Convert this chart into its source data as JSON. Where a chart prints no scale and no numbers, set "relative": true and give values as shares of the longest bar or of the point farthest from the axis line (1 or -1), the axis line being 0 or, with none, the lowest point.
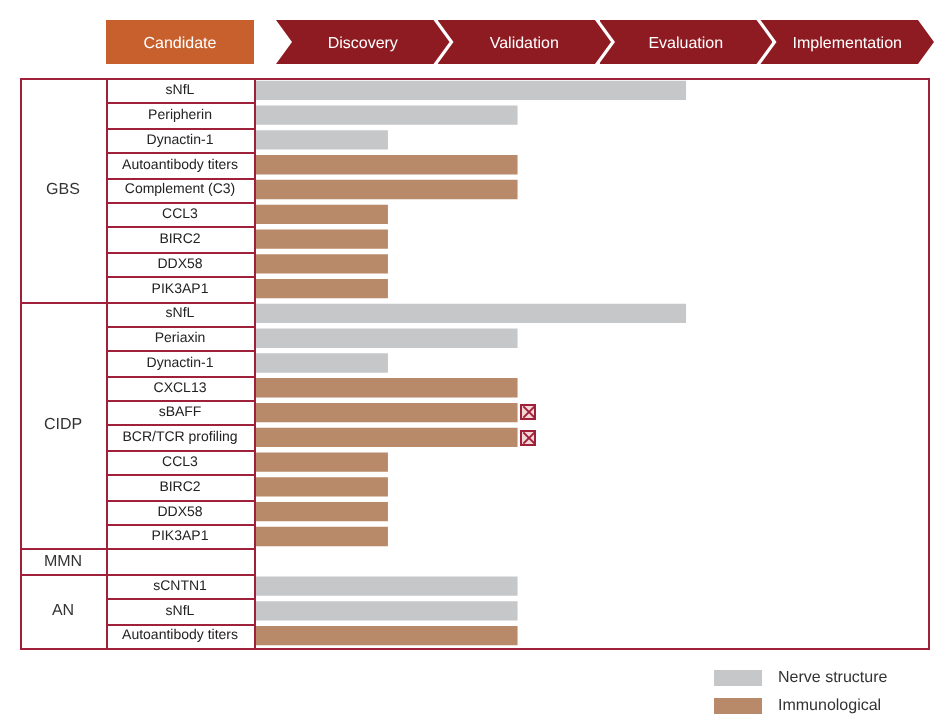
{
  "chart_data": {
    "type": "bar",
    "orientation": "horizontal",
    "relative": true,
    "categories": [
      "sNfL",
      "Peripherin",
      "Dynactin-1",
      "Autoantibody titers",
      "Complement (C3)",
      "CCL3",
      "BIRC2",
      "DDX58",
      "PIK3AP1",
      "sNfL",
      "Periaxin",
      "Dynactin-1",
      "CXCL13",
      "sBAFF",
      "BCR/TCR profiling",
      "CCL3",
      "BIRC2",
      "DDX58",
      "PIK3AP1",
      null,
      "sCNTN1",
      "sNfL",
      "Autoantibody titers"
    ],
    "series": [
      {
        "name": "Nerve structure",
        "color": "#c6c7c9",
        "values": [
          1,
          0.61,
          0.31,
          null,
          null,
          null,
          null,
          null,
          null,
          1,
          0.61,
          0.31,
          null,
          null,
          null,
          null,
          null,
          null,
          null,
          null,
          0.61,
          0.61,
          null
        ]
      },
      {
        "name": "Immunological",
        "color": "#b98a6a",
        "values": [
          null,
          null,
          null,
          0.61,
          0.61,
          0.31,
          0.31,
          0.31,
          0.31,
          null,
          null,
          null,
          0.61,
          0.61,
          0.61,
          0.31,
          0.31,
          0.31,
          0.31,
          null,
          null,
          null,
          0.61
        ]
      }
    ],
    "annotations": [
      "Candidate",
      "Discovery",
      "Validation",
      "Evaluation",
      "Implementation",
      "GBS",
      "CIDP",
      "MMN",
      "AN"
    ],
    "legend": "bottom right"
  }
}
